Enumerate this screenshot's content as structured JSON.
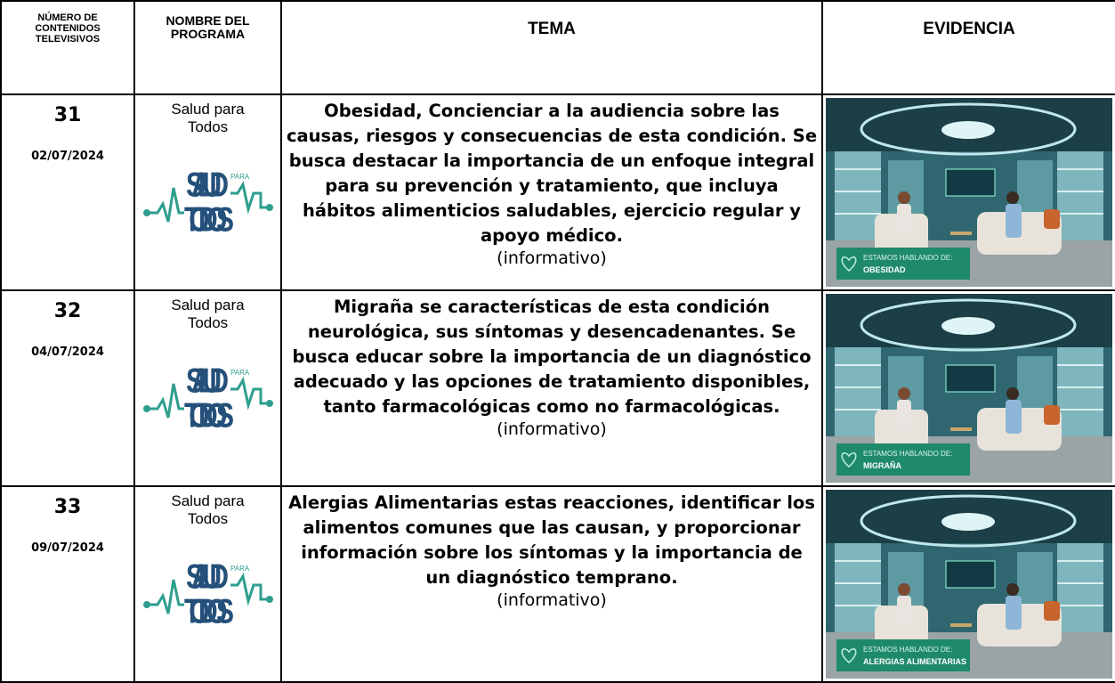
{
  "header": {
    "col1": "NÚMERO DE CONTENIDOS TELEVISIVOS",
    "col2": "NOMBRE DEL PROGRAMA",
    "col3": "TEMA",
    "col4": "EVIDENCIA"
  },
  "rows": [
    {
      "number": "31",
      "date": "02/07/2024",
      "program": "Salud para Todos",
      "logo": {
        "top": "SALUD",
        "small": "PARA",
        "bottom": "TODOS"
      },
      "topic": "Obesidad, Concienciar a la audiencia sobre las causas, riesgos y consecuencias de esta condición. Se busca destacar la importancia de un enfoque integral para su prevención y tratamiento, que incluya hábitos alimenticios saludables, ejercicio regular y apoyo médico.",
      "kind": "(informativo)",
      "evidence": {
        "caption": "ESTAMOS HABLANDO DE:",
        "subject": "OBESIDAD"
      }
    },
    {
      "number": "32",
      "date": "04/07/2024",
      "program": "Salud para Todos",
      "logo": {
        "top": "SALUD",
        "small": "PARA",
        "bottom": "TODOS"
      },
      "topic": "Migraña se características de esta condición neurológica, sus síntomas y desencadenantes. Se busca educar sobre la importancia de un diagnóstico adecuado y las opciones de tratamiento disponibles, tanto farmacológicas como no farmacológicas.",
      "kind": "(informativo)",
      "evidence": {
        "caption": "ESTAMOS HABLANDO DE:",
        "subject": "MIGRAÑA"
      }
    },
    {
      "number": "33",
      "date": "09/07/2024",
      "program": "Salud para Todos",
      "logo": {
        "top": "SALUD",
        "small": "PARA",
        "bottom": "TODOS"
      },
      "topic": "Alergias Alimentarias estas reacciones, identificar los alimentos comunes que las causan, y proporcionar información sobre los síntomas y la importancia de un diagnóstico temprano.",
      "kind": "(informativo)",
      "evidence": {
        "caption": "ESTAMOS HABLANDO DE:",
        "subject": "ALERGIAS ALIMENTARIAS"
      }
    }
  ]
}
